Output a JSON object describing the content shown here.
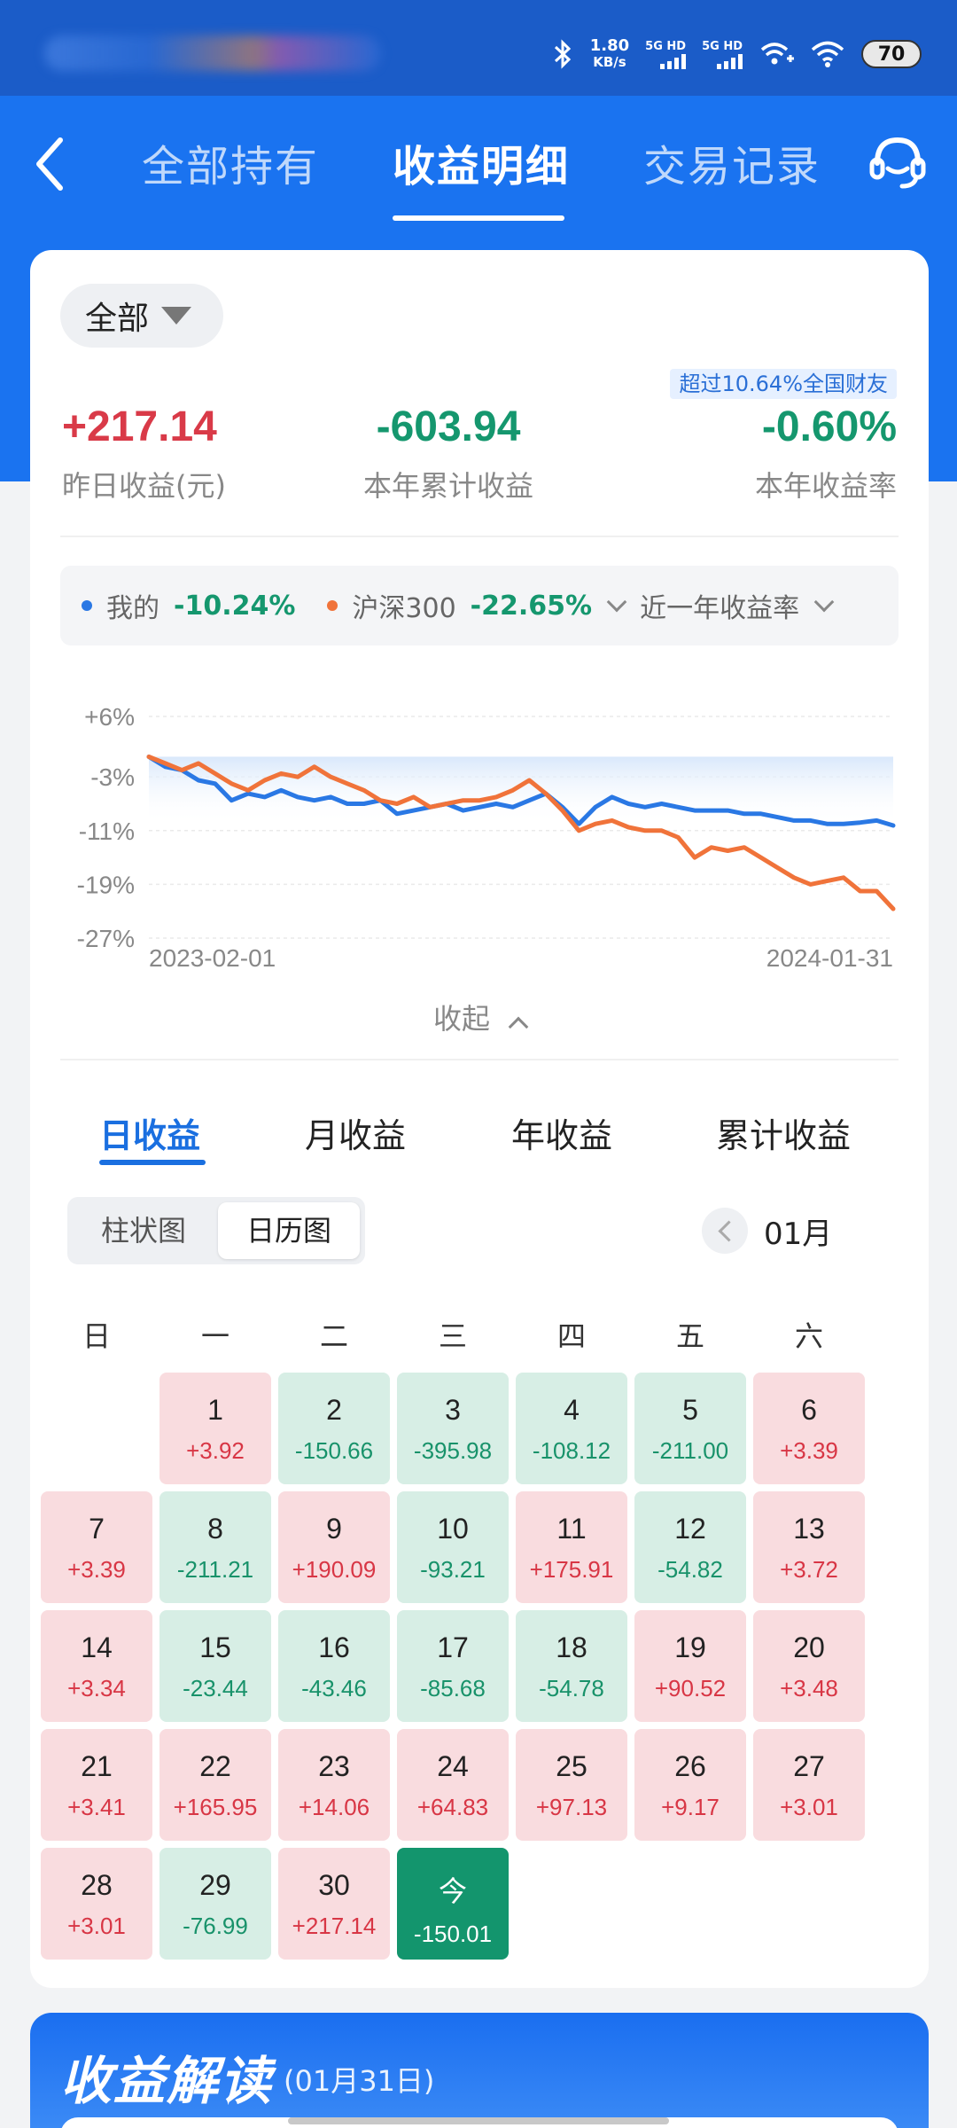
{
  "status": {
    "speed_value": "1.80",
    "speed_unit": "KB/s",
    "net1": "5G HD",
    "net2": "5G HD",
    "battery": "70"
  },
  "nav": {
    "tabs": [
      "全部持有",
      "收益明细",
      "交易记录"
    ],
    "active_tab": "收益明细"
  },
  "filter": {
    "label": "全部"
  },
  "summary": {
    "badge": "超过10.64%全国财友",
    "stats": [
      {
        "value": "+217.14",
        "label": "昨日收益(元)",
        "tone": "red"
      },
      {
        "value": "-603.94",
        "label": "本年累计收益",
        "tone": "green"
      },
      {
        "value": "-0.60%",
        "label": "本年收益率",
        "tone": "green"
      }
    ]
  },
  "legend": {
    "mine_label": "我的",
    "mine_value": "-10.24%",
    "index_label": "沪深300",
    "index_value": "-22.65%",
    "period_label": "近一年收益率"
  },
  "colors": {
    "mine": "#2a78e4",
    "index": "#f0733a",
    "positive": "#d83645",
    "negative": "#18926a"
  },
  "chart_data": {
    "type": "line",
    "x_start": "2023-02-01",
    "x_end": "2024-01-31",
    "y_ticks": [
      "+6%",
      "-3%",
      "-11%",
      "-19%",
      "-27%"
    ],
    "ylim": [
      -27,
      6
    ],
    "grid": true,
    "series": [
      {
        "name": "我的",
        "color": "#2a78e4",
        "values": [
          0,
          -1.5,
          -2,
          -3.5,
          -4,
          -6.5,
          -5.5,
          -6,
          -5,
          -6,
          -6.5,
          -6,
          -7,
          -7,
          -6.5,
          -8.5,
          -8,
          -7.5,
          -7,
          -8,
          -7.5,
          -7,
          -7.5,
          -6.5,
          -5.5,
          -7.5,
          -10,
          -7.5,
          -6,
          -7,
          -7.5,
          -7,
          -7.5,
          -8,
          -8,
          -8,
          -8.5,
          -8.5,
          -9,
          -9.5,
          -9.5,
          -10,
          -10,
          -9.8,
          -9.5,
          -10.24
        ]
      },
      {
        "name": "沪深300",
        "color": "#f0733a",
        "values": [
          0,
          -1,
          -2,
          -1,
          -2.5,
          -4,
          -5,
          -3.5,
          -2.5,
          -3,
          -1.5,
          -3,
          -4,
          -5,
          -6.5,
          -7,
          -6,
          -7.5,
          -7,
          -6.5,
          -6.5,
          -6,
          -5,
          -3.5,
          -5.5,
          -8,
          -11,
          -10,
          -9.5,
          -10.5,
          -11,
          -11,
          -12,
          -15,
          -13.5,
          -14,
          -13.5,
          -15,
          -16.5,
          -18,
          -19,
          -18.5,
          -18,
          -20,
          -20,
          -22.65
        ]
      }
    ]
  },
  "collapse_label": "收起",
  "period_tabs": [
    "日收益",
    "月收益",
    "年收益",
    "累计收益"
  ],
  "view_toggle": [
    "柱状图",
    "日历图"
  ],
  "month": "01月",
  "weekdays": [
    "日",
    "一",
    "二",
    "三",
    "四",
    "五",
    "六"
  ],
  "calendar": [
    {
      "d": "1",
      "v": "+3.92"
    },
    {
      "d": "2",
      "v": "-150.66"
    },
    {
      "d": "3",
      "v": "-395.98"
    },
    {
      "d": "4",
      "v": "-108.12"
    },
    {
      "d": "5",
      "v": "-211.00"
    },
    {
      "d": "6",
      "v": "+3.39"
    },
    {
      "d": "7",
      "v": "+3.39"
    },
    {
      "d": "8",
      "v": "-211.21"
    },
    {
      "d": "9",
      "v": "+190.09"
    },
    {
      "d": "10",
      "v": "-93.21"
    },
    {
      "d": "11",
      "v": "+175.91"
    },
    {
      "d": "12",
      "v": "-54.82"
    },
    {
      "d": "13",
      "v": "+3.72"
    },
    {
      "d": "14",
      "v": "+3.34"
    },
    {
      "d": "15",
      "v": "-23.44"
    },
    {
      "d": "16",
      "v": "-43.46"
    },
    {
      "d": "17",
      "v": "-85.68"
    },
    {
      "d": "18",
      "v": "-54.78"
    },
    {
      "d": "19",
      "v": "+90.52"
    },
    {
      "d": "20",
      "v": "+3.48"
    },
    {
      "d": "21",
      "v": "+3.41"
    },
    {
      "d": "22",
      "v": "+165.95"
    },
    {
      "d": "23",
      "v": "+14.06"
    },
    {
      "d": "24",
      "v": "+64.83"
    },
    {
      "d": "25",
      "v": "+97.13"
    },
    {
      "d": "26",
      "v": "+9.17"
    },
    {
      "d": "27",
      "v": "+3.01"
    },
    {
      "d": "28",
      "v": "+3.01"
    },
    {
      "d": "29",
      "v": "-76.99"
    },
    {
      "d": "30",
      "v": "+217.14"
    },
    {
      "d": "今",
      "v": "-150.01"
    }
  ],
  "calendar_first_weekday": 1,
  "today_day": 31,
  "interpretation": {
    "title": "收益解读",
    "date": "(01月31日)"
  }
}
